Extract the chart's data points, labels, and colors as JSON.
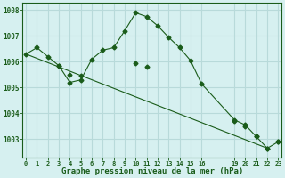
{
  "title": "Graphe pression niveau de la mer (hPa)",
  "bg_color": "#d6f0f0",
  "grid_color": "#b8dada",
  "line_color": "#1a5c1a",
  "line1_x": [
    0,
    1,
    2,
    3,
    4,
    5,
    6,
    7,
    8,
    9,
    10,
    11,
    12,
    13,
    14,
    15,
    16,
    19,
    20,
    21,
    22,
    23
  ],
  "line1_y": [
    1006.3,
    1006.55,
    1006.2,
    1005.85,
    1005.2,
    1005.3,
    1006.1,
    1006.45,
    1006.55,
    1007.2,
    1007.9,
    1007.75,
    1007.4,
    1006.95,
    1006.55,
    1006.05,
    1005.15,
    1003.75,
    1003.55,
    1003.1,
    1002.65,
    1002.9
  ],
  "line2_x": [
    0,
    22
  ],
  "line2_y": [
    1006.3,
    1002.65
  ],
  "line2_extra_x": [
    3,
    4,
    5,
    10,
    11,
    19,
    20,
    21,
    22,
    23
  ],
  "line2_extra_y": [
    1005.85,
    1005.5,
    1005.45,
    1005.95,
    1005.8,
    1003.7,
    1003.5,
    1003.1,
    1002.65,
    1002.9
  ],
  "xticks": [
    0,
    1,
    2,
    3,
    4,
    5,
    6,
    7,
    8,
    9,
    10,
    11,
    12,
    13,
    14,
    15,
    16,
    19,
    20,
    21,
    22,
    23
  ],
  "xtick_labels": [
    "0",
    "1",
    "2",
    "3",
    "4",
    "5",
    "6",
    "7",
    "8",
    "9",
    "10",
    "11",
    "12",
    "13",
    "14",
    "15",
    "16",
    "19",
    "20",
    "21",
    "22",
    "23"
  ],
  "xlim": [
    -0.3,
    23.3
  ],
  "ylim": [
    1002.3,
    1008.3
  ],
  "yticks": [
    1003,
    1004,
    1005,
    1006,
    1007,
    1008
  ]
}
